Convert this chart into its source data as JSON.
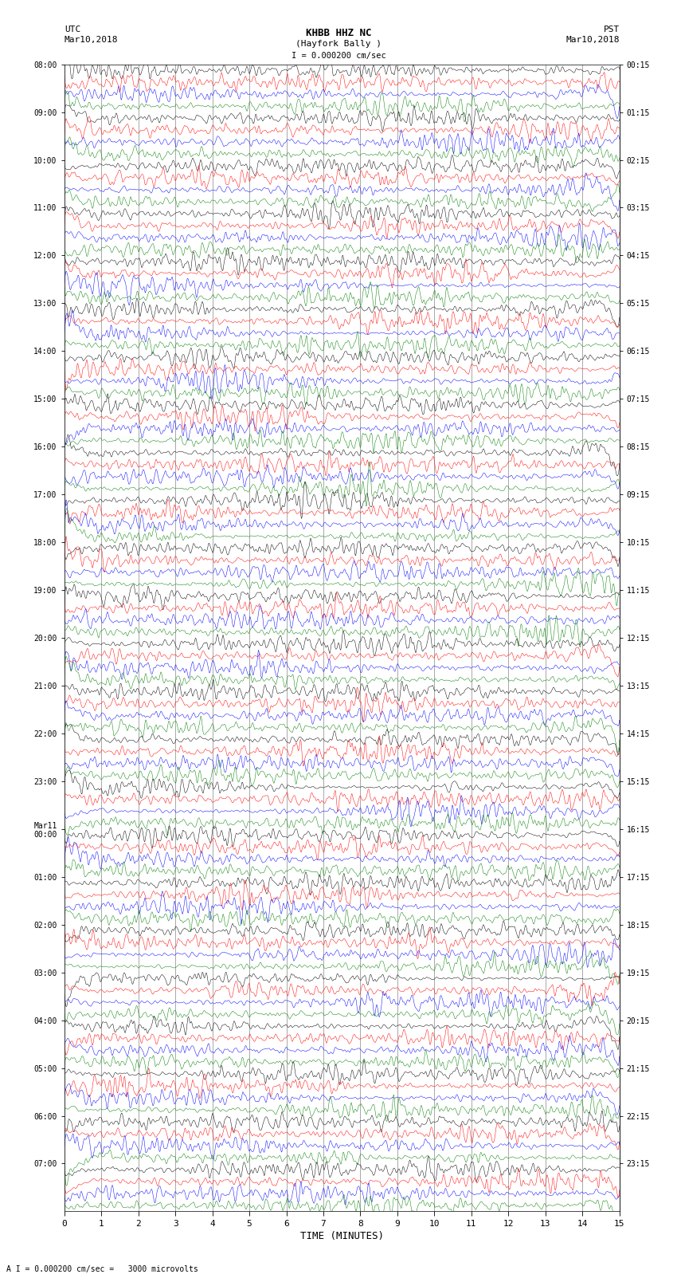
{
  "title_line1": "KHBB HHZ NC",
  "title_line2": "(Hayfork Bally )",
  "scale_label": "I = 0.000200 cm/sec",
  "left_label_top": "UTC",
  "left_label_date": "Mar10,2018",
  "right_label_top": "PST",
  "right_label_date": "Mar10,2018",
  "bottom_label": "TIME (MINUTES)",
  "footnote": "A I = 0.000200 cm/sec =   3000 microvolts",
  "xlabel_ticks": [
    0,
    1,
    2,
    3,
    4,
    5,
    6,
    7,
    8,
    9,
    10,
    11,
    12,
    13,
    14,
    15
  ],
  "xlim": [
    0,
    15
  ],
  "figsize": [
    8.5,
    16.13
  ],
  "dpi": 100,
  "bg_color": "#ffffff",
  "trace_colors": [
    "black",
    "red",
    "blue",
    "green"
  ],
  "left_hour_labels": [
    "08:00",
    "09:00",
    "10:00",
    "11:00",
    "12:00",
    "13:00",
    "14:00",
    "15:00",
    "16:00",
    "17:00",
    "18:00",
    "19:00",
    "20:00",
    "21:00",
    "22:00",
    "23:00",
    "00:00",
    "01:00",
    "02:00",
    "03:00",
    "04:00",
    "05:00",
    "06:00",
    "07:00"
  ],
  "left_hour_labels_prefix": [
    "",
    "",
    "",
    "",
    "",
    "",
    "",
    "",
    "",
    "",
    "",
    "",
    "",
    "",
    "",
    "",
    "Mar11\n",
    "",
    "",
    "",
    "",
    "",
    "",
    ""
  ],
  "right_hour_labels": [
    "00:15",
    "01:15",
    "02:15",
    "03:15",
    "04:15",
    "05:15",
    "06:15",
    "07:15",
    "08:15",
    "09:15",
    "10:15",
    "11:15",
    "12:15",
    "13:15",
    "14:15",
    "15:15",
    "16:15",
    "17:15",
    "18:15",
    "19:15",
    "20:15",
    "21:15",
    "22:15",
    "23:15"
  ],
  "n_hours": 24,
  "traces_per_hour": 4,
  "n_points": 2700,
  "base_amplitude": 0.28,
  "line_width": 0.35
}
